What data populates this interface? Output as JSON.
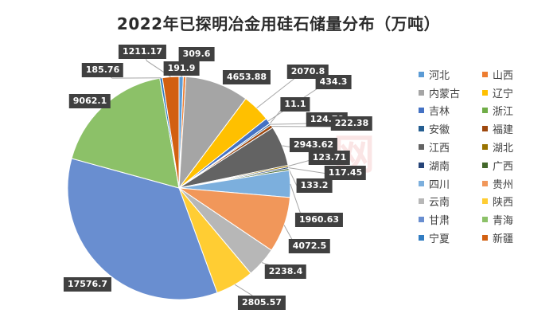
{
  "chart_data": {
    "type": "pie",
    "title": "2022年已探明冶金用硅石储量分布（万吨）",
    "watermark": "网",
    "start_angle_deg": 90,
    "legend_position": "right",
    "slices": [
      {
        "label": "河北",
        "value": 309.6,
        "color": "#5b9bd5"
      },
      {
        "label": "山西",
        "value": 191.9,
        "color": "#ed7d31"
      },
      {
        "label": "内蒙古",
        "value": 4653.88,
        "color": "#a5a5a5"
      },
      {
        "label": "辽宁",
        "value": 2070.8,
        "color": "#ffc000"
      },
      {
        "label": "吉林",
        "value": 434.3,
        "color": "#4472c4"
      },
      {
        "label": "浙江",
        "value": 11.1,
        "color": "#70ad47"
      },
      {
        "label": "安徽",
        "value": 124.79,
        "color": "#255e91"
      },
      {
        "label": "福建",
        "value": 222.38,
        "color": "#9e480e"
      },
      {
        "label": "江西",
        "value": 2943.62,
        "color": "#636363"
      },
      {
        "label": "湖北",
        "value": 123.71,
        "color": "#997300"
      },
      {
        "label": "湖南",
        "value": 117.45,
        "color": "#264478"
      },
      {
        "label": "广西",
        "value": 133.2,
        "color": "#43682b"
      },
      {
        "label": "四川",
        "value": 1960.63,
        "color": "#7cafdd"
      },
      {
        "label": "贵州",
        "value": 4072.5,
        "color": "#f1975a"
      },
      {
        "label": "云南",
        "value": 2238.4,
        "color": "#b7b7b7"
      },
      {
        "label": "陕西",
        "value": 2805.57,
        "color": "#ffcd33"
      },
      {
        "label": "甘肃",
        "value": 17576.7,
        "color": "#698ed0"
      },
      {
        "label": "青海",
        "value": 9062.1,
        "color": "#8cc168"
      },
      {
        "label": "宁夏",
        "value": 185.76,
        "color": "#327dc2"
      },
      {
        "label": "新疆",
        "value": 1211.17,
        "color": "#d26012"
      }
    ]
  }
}
